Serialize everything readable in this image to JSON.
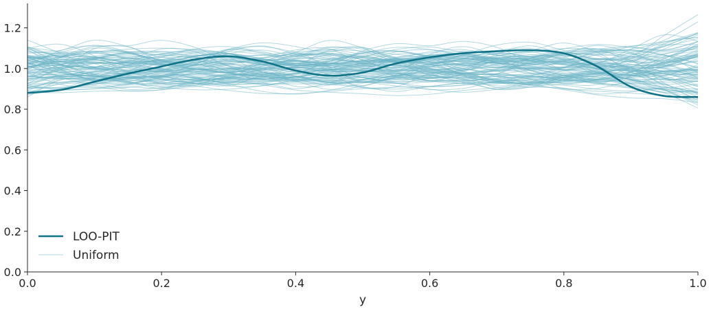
{
  "chart_data": {
    "type": "line",
    "title": "",
    "xlabel": "y",
    "ylabel": "",
    "xlim": [
      0.0,
      1.0
    ],
    "ylim": [
      0.0,
      1.32
    ],
    "x_ticks": [
      "0.0",
      "0.2",
      "0.4",
      "0.6",
      "0.8",
      "1.0"
    ],
    "y_ticks": [
      "0.0",
      "0.2",
      "0.4",
      "0.6",
      "0.8",
      "1.0",
      "1.2"
    ],
    "grid": false,
    "legend": {
      "position": "lower-left",
      "entries": [
        "LOO-PIT",
        "Uniform"
      ]
    },
    "colors": {
      "loo_pit": "#0f7388",
      "uniform": "#6ab4c6"
    },
    "series": [
      {
        "name": "LOO-PIT",
        "x": [
          0.0,
          0.05,
          0.1,
          0.15,
          0.2,
          0.25,
          0.3,
          0.35,
          0.4,
          0.45,
          0.5,
          0.55,
          0.6,
          0.65,
          0.7,
          0.75,
          0.8,
          0.85,
          0.9,
          0.95,
          1.0
        ],
        "y": [
          0.88,
          0.895,
          0.935,
          0.975,
          1.01,
          1.045,
          1.06,
          1.035,
          0.99,
          0.965,
          0.98,
          1.025,
          1.055,
          1.075,
          1.085,
          1.09,
          1.075,
          1.01,
          0.91,
          0.865,
          0.86
        ]
      }
    ],
    "uniform_samples": {
      "name": "Uniform",
      "count": 100,
      "y_center": 1.0,
      "y_range": [
        0.77,
        1.29
      ]
    }
  }
}
